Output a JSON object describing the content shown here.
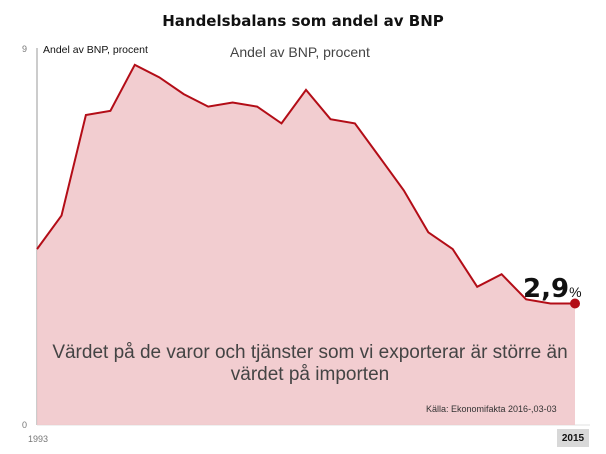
{
  "chart_data": {
    "type": "area",
    "title": "Handelsbalans som andel av BNP",
    "unit_label_small": "Andel av BNP, procent",
    "unit_label_large": "Andel av BNP, procent",
    "x": [
      1993,
      1994,
      1995,
      1996,
      1997,
      1998,
      1999,
      2000,
      2001,
      2002,
      2003,
      2004,
      2005,
      2006,
      2007,
      2008,
      2009,
      2010,
      2011,
      2012,
      2013,
      2014,
      2015
    ],
    "values": [
      4.2,
      5.0,
      7.4,
      7.5,
      8.6,
      8.3,
      7.9,
      7.6,
      7.7,
      7.6,
      7.2,
      8.0,
      7.3,
      7.2,
      6.4,
      5.6,
      4.6,
      4.2,
      3.3,
      3.6,
      3.0,
      2.9,
      2.9
    ],
    "ylim": [
      0,
      9
    ],
    "y_ticks": [
      "0",
      "9"
    ],
    "x_tick_first": "1993",
    "x_tick_last": "2015",
    "colors": {
      "line": "#b30d17",
      "fill": "#f1c8cb",
      "marker": "#b30d17"
    }
  },
  "annotation": "Värdet på de varor och tjänster som vi exporterar är större än värdet på importen",
  "source": "Källa: Ekonomifakta 2016-,03-03",
  "last_value": {
    "number": "2,9",
    "unit": "%"
  }
}
